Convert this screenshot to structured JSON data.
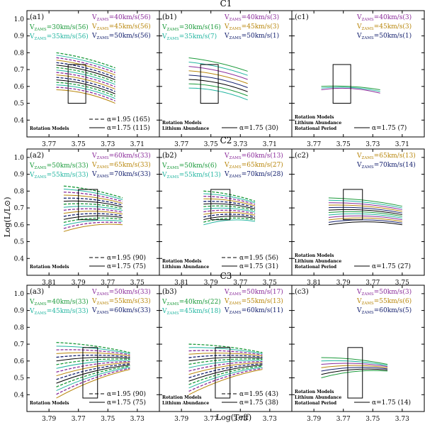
{
  "chart_data": {
    "type": "line",
    "ylabel": "Log(L/L⊙)",
    "xlabel": "Log(Teff)",
    "ylim": [
      0.3,
      1.05
    ],
    "yticks": [
      0.4,
      0.5,
      0.6,
      0.7,
      0.8,
      0.9,
      1.0
    ],
    "rows": [
      {
        "title": "C1",
        "xticks": [
          3.77,
          3.75,
          3.73,
          3.71
        ],
        "xlim": [
          3.785,
          3.695
        ],
        "box": {
          "x": [
            3.757,
            3.745
          ],
          "y": [
            0.5,
            0.73
          ]
        },
        "panels": [
          {
            "id": "(a1)",
            "legend": [
              {
                "v": "30km/s(56)",
                "color": "#1a9a3a",
                "col": 0
              },
              {
                "v": "35km/s(56)",
                "color": "#22b5a0",
                "col": 0
              },
              {
                "v": "40km/s(56)",
                "color": "#8a2b9a",
                "col": 1
              },
              {
                "v": "45km/s(56)",
                "color": "#b8860b",
                "col": 1
              },
              {
                "v": "50km/s(56)",
                "color": "#14206e",
                "col": 1
              }
            ],
            "notes": [
              "Rotation Models"
            ],
            "alpha_entries": [
              {
                "label": "α=1.95 (165)",
                "style": "dashed"
              },
              {
                "label": "α=1.75 (115)",
                "style": "solid"
              }
            ],
            "tracks": {
              "x_range": [
                3.765,
                3.725
              ],
              "y_top": [
                0.8,
                0.71
              ],
              "y_bottom": [
                0.58,
                0.5
              ],
              "count": 16,
              "styles": "mixed"
            }
          },
          {
            "id": "(b1)",
            "legend": [
              {
                "v": "30km/s(16)",
                "color": "#1a9a3a",
                "col": 0
              },
              {
                "v": "35km/s(7)",
                "color": "#22b5a0",
                "col": 0
              },
              {
                "v": "40km/s(3)",
                "color": "#8a2b9a",
                "col": 1
              },
              {
                "v": "45km/s(3)",
                "color": "#b8860b",
                "col": 1
              },
              {
                "v": "50km/s(1)",
                "color": "#14206e",
                "col": 1
              }
            ],
            "notes": [
              "Rotation Models",
              "Lithium Abundance"
            ],
            "alpha_entries": [
              {
                "label": "α=1.75 (30)",
                "style": "solid"
              }
            ],
            "tracks": {
              "x_range": [
                3.765,
                3.725
              ],
              "y_top": [
                0.77,
                0.69
              ],
              "y_bottom": [
                0.59,
                0.52
              ],
              "count": 8,
              "styles": "solid"
            }
          },
          {
            "id": "(c1)",
            "legend": [
              {
                "v": "40km/s(3)",
                "color": "#8a2b9a",
                "col": 1
              },
              {
                "v": "45km/s(3)",
                "color": "#b8860b",
                "col": 1
              },
              {
                "v": "50km/s(1)",
                "color": "#14206e",
                "col": 1
              }
            ],
            "notes": [
              "Rotation Models",
              "Lithium Abundance",
              "Rotational Period"
            ],
            "alpha_entries": [
              {
                "label": "α=1.75 (7)",
                "style": "solid"
              }
            ],
            "tracks": {
              "x_range": [
                3.765,
                3.725
              ],
              "y_top": [
                0.6,
                0.58
              ],
              "y_bottom": [
                0.58,
                0.56
              ],
              "count": 3,
              "styles": "solid"
            }
          }
        ]
      },
      {
        "title": "C2",
        "xticks": [
          3.81,
          3.79,
          3.77,
          3.75
        ],
        "xlim": [
          3.825,
          3.735
        ],
        "box": {
          "x": [
            3.79,
            3.777
          ],
          "y": [
            0.63,
            0.81
          ]
        },
        "panels": [
          {
            "id": "(a2)",
            "legend": [
              {
                "v": "50km/s(33)",
                "color": "#1a9a3a",
                "col": 0
              },
              {
                "v": "55km/s(33)",
                "color": "#22b5a0",
                "col": 0
              },
              {
                "v": "60km/s(33)",
                "color": "#8a2b9a",
                "col": 1
              },
              {
                "v": "65km/s(33)",
                "color": "#b8860b",
                "col": 1
              },
              {
                "v": "70km/s(33)",
                "color": "#14206e",
                "col": 1
              }
            ],
            "notes": [
              "Rotation Models"
            ],
            "alpha_entries": [
              {
                "label": "α=1.95 (90)",
                "style": "dashed"
              },
              {
                "label": "α=1.75 (75)",
                "style": "solid"
              }
            ],
            "tracks": {
              "x_range": [
                3.8,
                3.76
              ],
              "y_top": [
                0.83,
                0.76
              ],
              "y_bottom": [
                0.56,
                0.6
              ],
              "count": 16,
              "styles": "mixed"
            }
          },
          {
            "id": "(b2)",
            "legend": [
              {
                "v": "50km/s(6)",
                "color": "#1a9a3a",
                "col": 0
              },
              {
                "v": "55km/s(13)",
                "color": "#22b5a0",
                "col": 0
              },
              {
                "v": "60km/s(13)",
                "color": "#8a2b9a",
                "col": 1
              },
              {
                "v": "65km/s(27)",
                "color": "#b8860b",
                "col": 1
              },
              {
                "v": "70km/s(28)",
                "color": "#14206e",
                "col": 1
              }
            ],
            "notes": [
              "Rotation Models",
              "Lithium Abundance"
            ],
            "alpha_entries": [
              {
                "label": "α=1.95 (56)",
                "style": "dashed"
              },
              {
                "label": "α=1.75 (31)",
                "style": "solid"
              }
            ],
            "tracks": {
              "x_range": [
                3.795,
                3.76
              ],
              "y_top": [
                0.8,
                0.74
              ],
              "y_bottom": [
                0.6,
                0.62
              ],
              "count": 14,
              "styles": "mixed"
            }
          },
          {
            "id": "(c2)",
            "legend": [
              {
                "v": "65km/s(13)",
                "color": "#b8860b",
                "col": 1
              },
              {
                "v": "70km/s(14)",
                "color": "#14206e",
                "col": 1
              }
            ],
            "notes": [
              "Rotation Models",
              "Lithium Abundance",
              "Rotational Period"
            ],
            "alpha_entries": [
              {
                "label": "α=1.75 (27)",
                "style": "solid"
              }
            ],
            "tracks": {
              "x_range": [
                3.8,
                3.75
              ],
              "y_top": [
                0.76,
                0.71
              ],
              "y_bottom": [
                0.6,
                0.6
              ],
              "count": 12,
              "styles": "solid"
            }
          }
        ]
      },
      {
        "title": "C3",
        "xticks": [
          3.79,
          3.77,
          3.75,
          3.73
        ],
        "xlim": [
          3.805,
          3.715
        ],
        "box": {
          "x": [
            3.767,
            3.757
          ],
          "y": [
            0.38,
            0.68
          ]
        },
        "panels": [
          {
            "id": "(a3)",
            "legend": [
              {
                "v": "40km/s(33)",
                "color": "#1a9a3a",
                "col": 0
              },
              {
                "v": "45km/s(33)",
                "color": "#22b5a0",
                "col": 0
              },
              {
                "v": "50km/s(33)",
                "color": "#8a2b9a",
                "col": 1
              },
              {
                "v": "55km/s(33)",
                "color": "#b8860b",
                "col": 1
              },
              {
                "v": "60km/s(33)",
                "color": "#14206e",
                "col": 1
              }
            ],
            "notes": [
              "Rotation Models"
            ],
            "alpha_entries": [
              {
                "label": "α=1.95 (90)",
                "style": "dashed"
              },
              {
                "label": "α=1.75 (75)",
                "style": "solid"
              }
            ],
            "tracks": {
              "x_range": [
                3.785,
                3.735
              ],
              "y_top": [
                0.71,
                0.65
              ],
              "y_bottom": [
                0.38,
                0.55
              ],
              "count": 16,
              "styles": "mixed"
            }
          },
          {
            "id": "(b3)",
            "legend": [
              {
                "v": "40km/s(22)",
                "color": "#1a9a3a",
                "col": 0
              },
              {
                "v": "45km/s(18)",
                "color": "#22b5a0",
                "col": 0
              },
              {
                "v": "50km/s(17)",
                "color": "#8a2b9a",
                "col": 1
              },
              {
                "v": "55km/s(13)",
                "color": "#b8860b",
                "col": 1
              },
              {
                "v": "60km/s(11)",
                "color": "#14206e",
                "col": 1
              }
            ],
            "notes": [
              "Rotation Models",
              "Lithium Abundance"
            ],
            "alpha_entries": [
              {
                "label": "α=1.95 (43)",
                "style": "dashed"
              },
              {
                "label": "α=1.75 (38)",
                "style": "solid"
              }
            ],
            "tracks": {
              "x_range": [
                3.785,
                3.735
              ],
              "y_top": [
                0.7,
                0.65
              ],
              "y_bottom": [
                0.4,
                0.55
              ],
              "count": 16,
              "styles": "mixed"
            }
          },
          {
            "id": "(c3)",
            "legend": [
              {
                "v": "50km/s(3)",
                "color": "#8a2b9a",
                "col": 1
              },
              {
                "v": "55km/s(6)",
                "color": "#b8860b",
                "col": 1
              },
              {
                "v": "60km/s(5)",
                "color": "#14206e",
                "col": 1
              }
            ],
            "notes": [
              "Rotation Models",
              "Lithium Abundance",
              "Rotational Period"
            ],
            "alpha_entries": [
              {
                "label": "α=1.75 (14)",
                "style": "solid"
              }
            ],
            "tracks": {
              "x_range": [
                3.785,
                3.74
              ],
              "y_top": [
                0.62,
                0.58
              ],
              "y_bottom": [
                0.5,
                0.54
              ],
              "count": 7,
              "styles": "solid"
            }
          }
        ]
      }
    ]
  }
}
